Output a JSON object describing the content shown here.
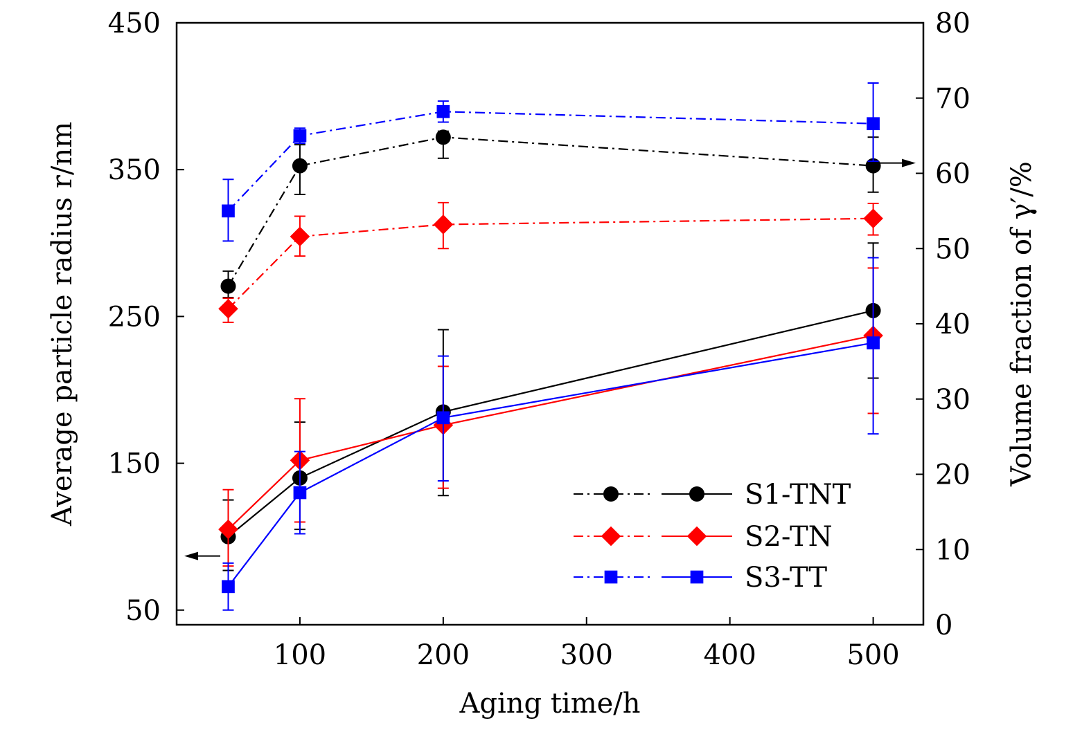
{
  "chart_data": {
    "type": "line",
    "xlabel": "Aging time/h",
    "ylabel_left": "Average particle radius r/nm",
    "ylabel_right": "Volume fraction of γ′/%",
    "x_ticks": [
      100,
      200,
      300,
      400,
      500
    ],
    "xlim": [
      14,
      535
    ],
    "ylim_left": [
      40,
      450
    ],
    "ylim_right": [
      0,
      80
    ],
    "y_ticks_left": [
      50,
      150,
      250,
      350,
      450
    ],
    "y_ticks_right": [
      0,
      10,
      20,
      30,
      40,
      50,
      60,
      70,
      80
    ],
    "grid": false,
    "legend_position": "bottom-right",
    "colors": {
      "S1": "#000000",
      "S2": "#ff0000",
      "S3": "#0000ff"
    },
    "series": [
      {
        "name": "S1-TNT",
        "metric": "volume fraction",
        "axis": "right",
        "linestyle": "dash-dot",
        "marker": "circle",
        "color": "#000000",
        "x": [
          50,
          100,
          200,
          500
        ],
        "y": [
          45,
          61,
          64.8,
          61
        ],
        "err": [
          [
            43.5,
            47
          ],
          [
            57.2,
            63.8
          ],
          [
            62.0,
            65.6
          ],
          [
            57.5,
            64.8
          ]
        ]
      },
      {
        "name": "S2-TN",
        "metric": "volume fraction",
        "axis": "right",
        "linestyle": "dash-dot",
        "marker": "diamond",
        "color": "#ff0000",
        "x": [
          50,
          100,
          200,
          500
        ],
        "y": [
          42,
          51.6,
          53.2,
          54
        ],
        "err": [
          [
            40.2,
            43.4
          ],
          [
            49.0,
            54.3
          ],
          [
            50.0,
            56.1
          ],
          [
            51.8,
            56.0
          ]
        ]
      },
      {
        "name": "S3-TT",
        "metric": "volume fraction",
        "axis": "right",
        "linestyle": "dash-dot",
        "marker": "square",
        "color": "#0000ff",
        "x": [
          50,
          100,
          200,
          500
        ],
        "y": [
          55,
          65,
          68.2,
          66.6
        ],
        "err": [
          [
            51.0,
            59.2
          ],
          [
            64.0,
            66.0
          ],
          [
            66.8,
            69.6
          ],
          [
            61.6,
            72.0
          ]
        ]
      },
      {
        "name": "S1-TNT",
        "metric": "particle radius",
        "axis": "left",
        "linestyle": "solid",
        "marker": "circle",
        "color": "#000000",
        "x": [
          50,
          100,
          200,
          500
        ],
        "y": [
          100,
          140,
          185,
          254
        ],
        "err": [
          [
            77,
            125
          ],
          [
            105,
            178
          ],
          [
            128,
            241
          ],
          [
            208,
            300
          ]
        ]
      },
      {
        "name": "S2-TN",
        "metric": "particle radius",
        "axis": "left",
        "linestyle": "solid",
        "marker": "diamond",
        "color": "#ff0000",
        "x": [
          50,
          100,
          200,
          500
        ],
        "y": [
          105,
          152,
          176,
          237
        ],
        "err": [
          [
            80,
            132
          ],
          [
            110,
            194
          ],
          [
            133,
            216
          ],
          [
            184,
            283
          ]
        ]
      },
      {
        "name": "S3-TT",
        "metric": "particle radius",
        "axis": "left",
        "linestyle": "solid",
        "marker": "square",
        "color": "#0000ff",
        "x": [
          50,
          100,
          200,
          500
        ],
        "y": [
          66,
          130,
          181,
          232
        ],
        "err": [
          [
            50,
            82
          ],
          [
            102,
            158
          ],
          [
            138,
            223
          ],
          [
            170,
            290
          ]
        ]
      }
    ],
    "legend": [
      {
        "label": "S1-TNT",
        "marker": "circle",
        "color": "#000000"
      },
      {
        "label": "S2-TN",
        "marker": "diamond",
        "color": "#ff0000"
      },
      {
        "label": "S3-TT",
        "marker": "square",
        "color": "#0000ff"
      }
    ]
  }
}
